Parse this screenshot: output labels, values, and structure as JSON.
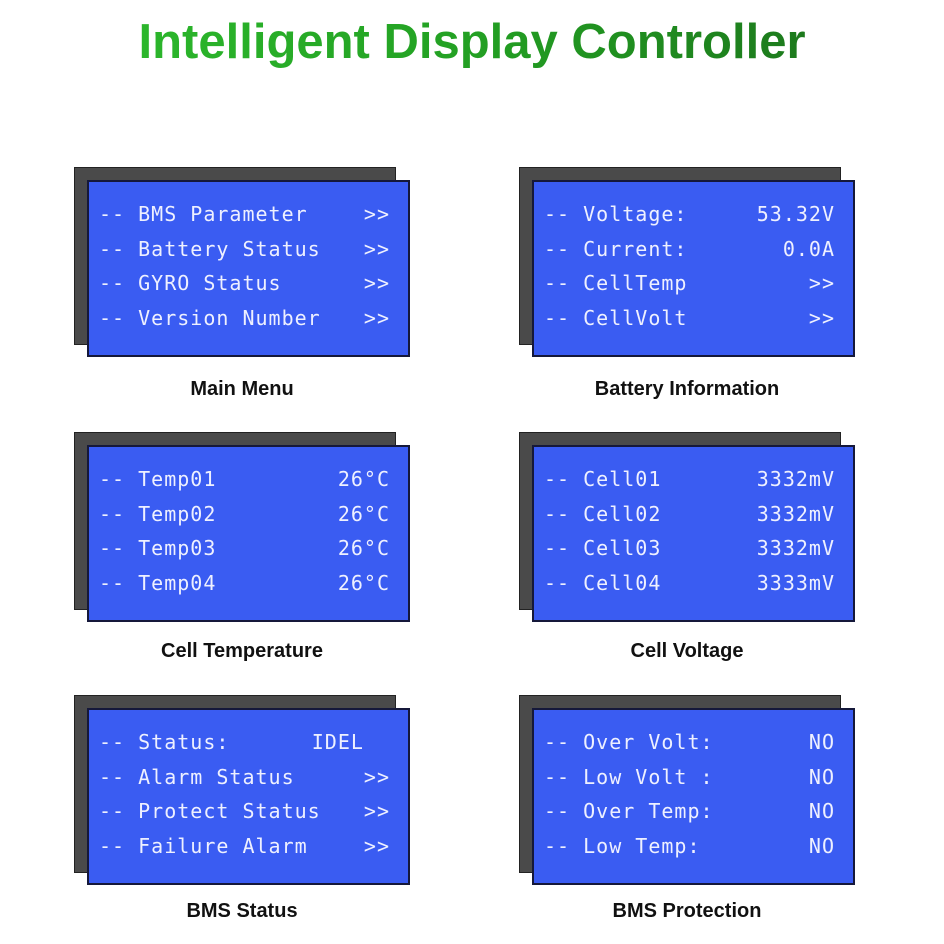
{
  "title": "Intelligent Display Controller",
  "colors": {
    "screen": "#3a5cf2",
    "frame": "#4a4a4a",
    "title_green": "#23a023"
  },
  "panels": [
    {
      "caption": "Main Menu",
      "rows": [
        {
          "label": "-- BMS Parameter",
          "value": ">>"
        },
        {
          "label": "-- Battery Status",
          "value": ">>"
        },
        {
          "label": "-- GYRO Status",
          "value": ">>"
        },
        {
          "label": "-- Version Number",
          "value": ">>"
        }
      ]
    },
    {
      "caption": "Battery Information",
      "rows": [
        {
          "label": "-- Voltage:",
          "value": "53.32V"
        },
        {
          "label": "-- Current:",
          "value": "0.0A"
        },
        {
          "label": "-- CellTemp",
          "value": ">>"
        },
        {
          "label": "-- CellVolt",
          "value": ">>"
        }
      ]
    },
    {
      "caption": "Cell Temperature",
      "rows": [
        {
          "label": "-- Temp01",
          "value": "26°C"
        },
        {
          "label": "-- Temp02",
          "value": "26°C"
        },
        {
          "label": "-- Temp03",
          "value": "26°C"
        },
        {
          "label": "-- Temp04",
          "value": "26°C"
        }
      ]
    },
    {
      "caption": "Cell Voltage",
      "rows": [
        {
          "label": "-- Cell01",
          "value": "3332mV"
        },
        {
          "label": "-- Cell02",
          "value": "3332mV"
        },
        {
          "label": "-- Cell03",
          "value": "3332mV"
        },
        {
          "label": "-- Cell04",
          "value": "3333mV"
        }
      ]
    },
    {
      "caption": "BMS Status",
      "rows": [
        {
          "label": "-- Status:",
          "value": "IDEL  "
        },
        {
          "label": "-- Alarm Status",
          "value": ">>"
        },
        {
          "label": "-- Protect Status",
          "value": ">>"
        },
        {
          "label": "-- Failure Alarm",
          "value": ">>"
        }
      ]
    },
    {
      "caption": "BMS Protection",
      "rows": [
        {
          "label": "-- Over Volt:",
          "value": "NO"
        },
        {
          "label": "-- Low Volt :",
          "value": "NO"
        },
        {
          "label": "-- Over Temp:",
          "value": "NO"
        },
        {
          "label": "-- Low Temp:",
          "value": "NO"
        }
      ]
    }
  ]
}
